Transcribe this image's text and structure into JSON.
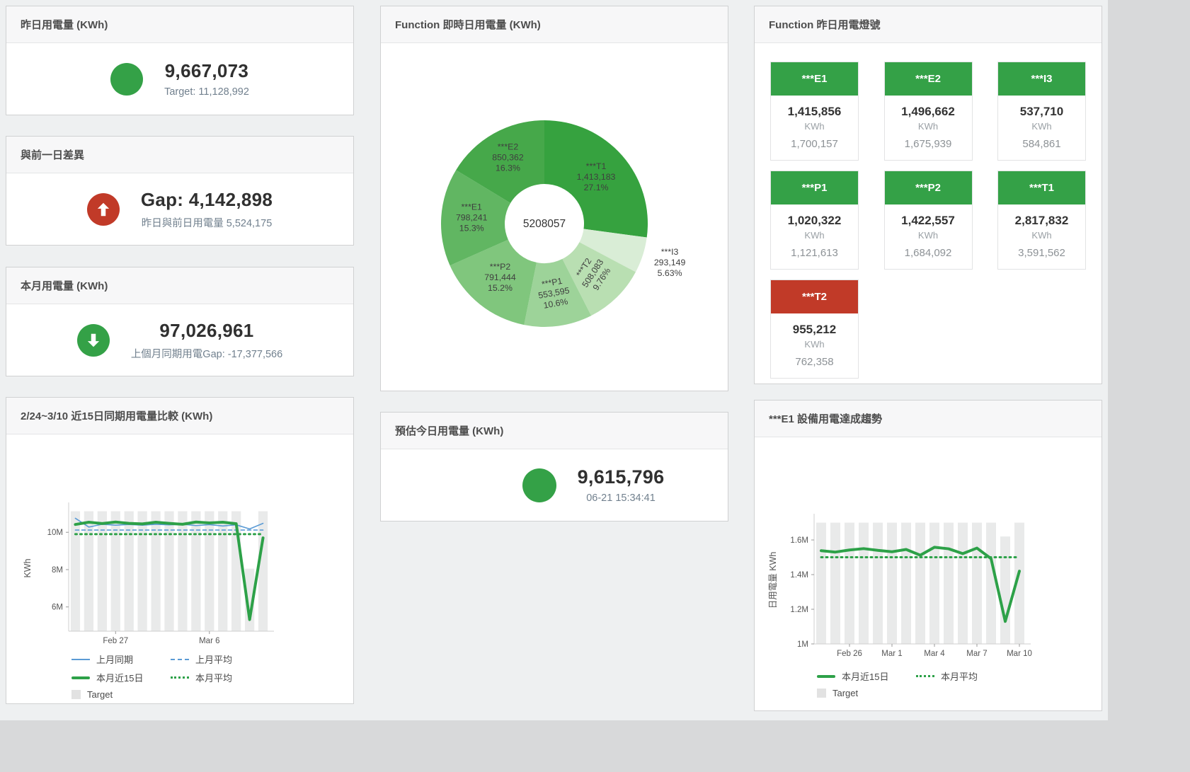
{
  "colors": {
    "green": "#34a147",
    "red": "#c13a28",
    "blue": "#5b9bd5",
    "bar_gray": "#e9eaea",
    "legend_box": "#e2e2e2",
    "subtitle": "#71808e"
  },
  "panels": {
    "yesterday": {
      "title": "昨日用電量 (KWh)",
      "value": "9,667,073",
      "subtitle": "Target: 11,128,992",
      "status": "green"
    },
    "gap": {
      "title": "與前一日差異",
      "value": "Gap: 4,142,898",
      "subtitle": "昨日與前日用電量 5,524,175",
      "status": "red"
    },
    "month": {
      "title": "本月用電量 (KWh)",
      "value": "97,026,961",
      "subtitle": "上個月同期用電Gap: -17,377,566",
      "status": "green"
    },
    "compare": {
      "title": "2/24~3/10 近15日同期用電量比較 (KWh)"
    },
    "realtime": {
      "title": "Function 即時日用電量 (KWh)"
    },
    "estimate": {
      "title": "預估今日用電量 (KWh)",
      "value": "9,615,796",
      "subtitle": "06-21 15:34:41",
      "status": "green"
    },
    "lights": {
      "title": "Function 昨日用電燈號",
      "unit": "KWh",
      "tiles": [
        {
          "label": "***E1",
          "value": "1,415,856",
          "unit": "KWh",
          "target": "1,700,157",
          "status": "green"
        },
        {
          "label": "***E2",
          "value": "1,496,662",
          "unit": "KWh",
          "target": "1,675,939",
          "status": "green"
        },
        {
          "label": "***I3",
          "value": "537,710",
          "unit": "KWh",
          "target": "584,861",
          "status": "green"
        },
        {
          "label": "***P1",
          "value": "1,020,322",
          "unit": "KWh",
          "target": "1,121,613",
          "status": "green"
        },
        {
          "label": "***P2",
          "value": "1,422,557",
          "unit": "KWh",
          "target": "1,684,092",
          "status": "green"
        },
        {
          "label": "***T1",
          "value": "2,817,832",
          "unit": "KWh",
          "target": "3,591,562",
          "status": "green"
        },
        {
          "label": "***T2",
          "value": "955,212",
          "unit": "KWh",
          "target": "762,358",
          "status": "red"
        }
      ]
    },
    "e1trend": {
      "title": "***E1 設備用電達成趨勢"
    }
  },
  "chart_data": [
    {
      "id": "realtime_donut",
      "type": "pie",
      "title": "Function 即時日用電量 (KWh)",
      "center_total": "5208057",
      "slices": [
        {
          "name": "***T1",
          "value": 1413183,
          "pct": "27.1%",
          "color": "#36a23f",
          "label_radius": 97,
          "rotate": 0
        },
        {
          "name": "***I3",
          "value": 293149,
          "pct": "5.63%",
          "color": "#d9edd6",
          "label_radius": 186,
          "rotate": 0
        },
        {
          "name": "***T2",
          "value": 508083,
          "pct": "9.76%",
          "color": "#b9dfb2",
          "label_radius": 100,
          "rotate": -57
        },
        {
          "name": "***P1",
          "value": 553595,
          "pct": "10.6%",
          "color": "#9dd399",
          "label_radius": 101,
          "rotate": -10
        },
        {
          "name": "***P2",
          "value": 791444,
          "pct": "15.2%",
          "color": "#80c67d",
          "label_radius": 100,
          "rotate": 0
        },
        {
          "name": "***E1",
          "value": 798241,
          "pct": "15.3%",
          "color": "#61b662",
          "label_radius": 103,
          "rotate": 0
        },
        {
          "name": "***E2",
          "value": 850362,
          "pct": "16.3%",
          "color": "#46a84a",
          "label_radius": 105,
          "rotate": 0
        }
      ]
    },
    {
      "id": "compare15",
      "type": "line",
      "title": "2/24~3/10 近15日同期用電量比較 (KWh)",
      "ylabel": "KWh",
      "categories": [
        "2/24",
        "2/25",
        "2/26",
        "2/27",
        "2/28",
        "3/1",
        "3/2",
        "3/3",
        "3/4",
        "3/5",
        "3/6",
        "3/7",
        "3/8",
        "3/9",
        "3/10"
      ],
      "xticks": [
        {
          "index": 3,
          "label": "Feb 27"
        },
        {
          "index": 10,
          "label": "Mar 6"
        }
      ],
      "ylim": [
        4700000,
        11450000
      ],
      "yticks": [
        {
          "value": 6000000,
          "label": "6M"
        },
        {
          "value": 8000000,
          "label": "8M"
        },
        {
          "value": 10000000,
          "label": "10M"
        }
      ],
      "bars": {
        "name": "Target",
        "color": "#e9eaea",
        "values": [
          11128992,
          11128992,
          11128992,
          11128992,
          11128992,
          11128992,
          11128992,
          11128992,
          11128992,
          11128992,
          11128992,
          11128992,
          11128992,
          8050000,
          11128992
        ]
      },
      "series": [
        {
          "name": "上月同期",
          "color": "#5b9bd5",
          "width": 1.6,
          "dash": null,
          "values": [
            10750000,
            10280000,
            10430000,
            10380000,
            10420000,
            10380000,
            10430000,
            10400000,
            10430000,
            10360000,
            10410000,
            10340000,
            10400000,
            10180000,
            10480000
          ]
        },
        {
          "name": "上月平均",
          "color": "#5b9bd5",
          "width": 1.6,
          "dash": "5,4",
          "values": [
            10120000,
            10120000,
            10120000,
            10120000,
            10120000,
            10120000,
            10120000,
            10120000,
            10120000,
            10120000,
            10120000,
            10120000,
            10120000,
            10120000,
            10120000
          ]
        },
        {
          "name": "本月近15日",
          "color": "#2da148",
          "width": 4,
          "dash": null,
          "values": [
            10420000,
            10540000,
            10470000,
            10550000,
            10480000,
            10450000,
            10540000,
            10480000,
            10430000,
            10550000,
            10500000,
            10540000,
            10460000,
            5320000,
            9700000
          ]
        },
        {
          "name": "本月平均",
          "color": "#2da148",
          "width": 3,
          "dash": "2,5",
          "values": [
            9900000,
            9900000,
            9900000,
            9900000,
            9900000,
            9900000,
            9900000,
            9900000,
            9900000,
            9900000,
            9900000,
            9900000,
            9900000,
            9900000,
            9900000
          ]
        }
      ],
      "legend": {
        "rows": [
          [
            {
              "label": "上月同期",
              "swatch": "line",
              "color": "#5b9bd5"
            },
            {
              "label": "上月平均",
              "swatch": "dash",
              "color": "#5b9bd5"
            }
          ],
          [
            {
              "label": "本月近15日",
              "swatch": "thick",
              "color": "#2da148"
            },
            {
              "label": "本月平均",
              "swatch": "dots",
              "color": "#2da148"
            }
          ],
          [
            {
              "label": "Target",
              "swatch": "box",
              "color": "#e2e2e2"
            }
          ]
        ]
      }
    },
    {
      "id": "e1trend",
      "type": "line",
      "title": "***E1 設備用電達成趨勢",
      "ylabel": "日用電量 KWh",
      "categories": [
        "2/24",
        "2/25",
        "2/26",
        "2/27",
        "2/28",
        "3/1",
        "3/2",
        "3/3",
        "3/4",
        "3/5",
        "3/6",
        "3/7",
        "3/8",
        "3/9",
        "3/10"
      ],
      "xticks": [
        {
          "index": 2,
          "label": "Feb 26"
        },
        {
          "index": 5,
          "label": "Mar 1"
        },
        {
          "index": 8,
          "label": "Mar 4"
        },
        {
          "index": 11,
          "label": "Mar 7"
        },
        {
          "index": 14,
          "label": "Mar 10"
        }
      ],
      "ylim": [
        1000000,
        1735000
      ],
      "yticks": [
        {
          "value": 1000000,
          "label": "1M"
        },
        {
          "value": 1200000,
          "label": "1.2M"
        },
        {
          "value": 1400000,
          "label": "1.4M"
        },
        {
          "value": 1600000,
          "label": "1.6M"
        }
      ],
      "bars": {
        "name": "Target",
        "color": "#e9eaea",
        "values": [
          1700000,
          1700000,
          1700000,
          1700000,
          1700000,
          1700000,
          1700000,
          1700000,
          1700000,
          1700000,
          1700000,
          1700000,
          1700000,
          1620000,
          1700000
        ]
      },
      "series": [
        {
          "name": "本月近15日",
          "color": "#2da148",
          "width": 4,
          "dash": null,
          "values": [
            1538000,
            1530000,
            1542000,
            1550000,
            1540000,
            1532000,
            1545000,
            1512000,
            1558000,
            1549000,
            1521000,
            1553000,
            1492000,
            1130000,
            1420000
          ]
        },
        {
          "name": "本月平均",
          "color": "#2da148",
          "width": 3,
          "dash": "2,5",
          "values": [
            1500000,
            1500000,
            1500000,
            1500000,
            1500000,
            1500000,
            1500000,
            1500000,
            1500000,
            1500000,
            1500000,
            1500000,
            1500000,
            1500000,
            1500000
          ]
        }
      ],
      "legend": {
        "rows": [
          [
            {
              "label": "本月近15日",
              "swatch": "thick",
              "color": "#2da148"
            },
            {
              "label": "本月平均",
              "swatch": "dots",
              "color": "#2da148"
            }
          ],
          [
            {
              "label": "Target",
              "swatch": "box",
              "color": "#e2e2e2"
            }
          ]
        ]
      }
    }
  ]
}
